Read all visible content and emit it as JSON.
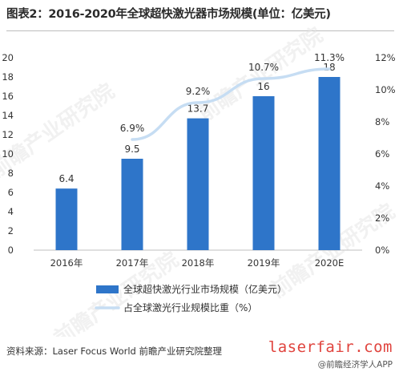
{
  "header": {
    "title": "图表2：2016-2020年全球超快激光器市场规模(单位：亿美元)"
  },
  "footer": {
    "source": "资料来源：Laser Focus World 前瞻产业研究院整理",
    "brand": "laserfair.com",
    "brand_app": "@前瞻经济学人APP"
  },
  "watermark": {
    "text": "前瞻产业研究院"
  },
  "colors": {
    "bar": "#2e75c9",
    "line": "#c6ddf3",
    "axis": "#bfbfbf",
    "text": "#333333"
  },
  "chart_data": {
    "type": "bar",
    "categories": [
      "2016年",
      "2017年",
      "2018年",
      "2019年",
      "2020E"
    ],
    "series": [
      {
        "name": "全球超快激光行业市场规模（亿美元）",
        "type": "bar",
        "axis": "left",
        "values": [
          6.4,
          9.5,
          13.7,
          16,
          18
        ],
        "labels": [
          "6.4",
          "9.5",
          "13.7",
          "16",
          "18"
        ]
      },
      {
        "name": "占全球激光行业规模比重（%）",
        "type": "line",
        "axis": "right",
        "values": [
          null,
          6.9,
          9.2,
          10.7,
          11.3
        ],
        "labels": [
          "",
          "6.9%",
          "9.2%",
          "10.7%",
          "11.3%"
        ]
      }
    ],
    "y_left": {
      "ylim": [
        0,
        20
      ],
      "ticks": [
        "0",
        "2",
        "4",
        "6",
        "8",
        "10",
        "12",
        "14",
        "16",
        "18",
        "20"
      ]
    },
    "y_right": {
      "ylim": [
        0,
        12
      ],
      "ticks": [
        "0%",
        "2%",
        "4%",
        "6%",
        "8%",
        "10%",
        "12%"
      ]
    },
    "legend_position": "bottom",
    "grid": false
  }
}
